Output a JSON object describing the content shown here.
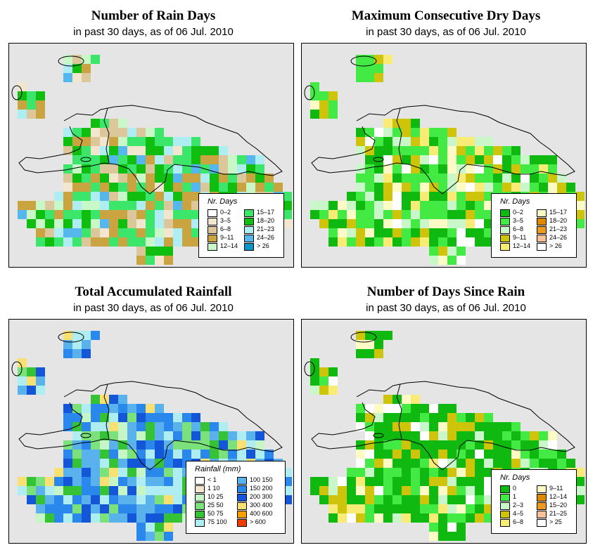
{
  "panels": [
    {
      "id": "rain-days",
      "title": "Number of Rain Days",
      "subtitle": "in past 30 days, as of  06 Jul. 2010",
      "legend": {
        "title": "Nr. Days",
        "items": [
          {
            "label": "0–2",
            "color": "#ffffff"
          },
          {
            "label": "3–5",
            "color": "#f3e6cf"
          },
          {
            "label": "6–8",
            "color": "#dcc79a"
          },
          {
            "label": "9–11",
            "color": "#c9a440"
          },
          {
            "label": "12–14",
            "color": "#c8f7c8"
          },
          {
            "label": "15–17",
            "color": "#3ce66a"
          },
          {
            "label": "18–20",
            "color": "#0fbe0f"
          },
          {
            "label": "21–23",
            "color": "#aeeef3"
          },
          {
            "label": "24–26",
            "color": "#55b7ec"
          },
          {
            "label": "> 26",
            "color": "#0a94c8"
          }
        ]
      }
    },
    {
      "id": "max-dry-days",
      "title": "Maximum Consecutive Dry Days",
      "subtitle": "in past 30 days, as of  06 Jul. 2010",
      "legend": {
        "title": "Nr. Days",
        "items": [
          {
            "label": "0–2",
            "color": "#10b910"
          },
          {
            "label": "3–5",
            "color": "#43ea43"
          },
          {
            "label": "6–8",
            "color": "#c9f7c9"
          },
          {
            "label": "9–11",
            "color": "#cdc40b"
          },
          {
            "label": "12–14",
            "color": "#f8ec76"
          },
          {
            "label": "15–17",
            "color": "#fcfbc5"
          },
          {
            "label": "18–20",
            "color": "#dc8a00"
          },
          {
            "label": "21–23",
            "color": "#ec9a20"
          },
          {
            "label": "24–26",
            "color": "#f8c29a"
          },
          {
            "label": "> 26",
            "color": "#ffffff"
          }
        ]
      }
    },
    {
      "id": "total-rainfall",
      "title": "Total Accumulated Rainfall",
      "subtitle": "in past 30 days, as of  06 Jul. 2010",
      "legend": {
        "title": "Rainfall (mm)",
        "items": [
          {
            "label": "< 1",
            "color": "#ffffff"
          },
          {
            "label": "1   10",
            "color": "#f5e6cf"
          },
          {
            "label": "10   25",
            "color": "#c6f6c6"
          },
          {
            "label": "25   50",
            "color": "#7be27b"
          },
          {
            "label": "50   75",
            "color": "#35c235"
          },
          {
            "label": "75  100",
            "color": "#aeeef3"
          },
          {
            "label": "100  150",
            "color": "#5ab2ec"
          },
          {
            "label": "150  200",
            "color": "#2a88ec"
          },
          {
            "label": "200  300",
            "color": "#1456d8"
          },
          {
            "label": "300  400",
            "color": "#f8e072"
          },
          {
            "label": "400  600",
            "color": "#f4a000"
          },
          {
            "label": "> 600",
            "color": "#f03c00"
          }
        ]
      }
    },
    {
      "id": "days-since-rain",
      "title": "Number of Days Since Rain",
      "subtitle": "in past 30 days, as of  06 Jul. 2010",
      "legend": {
        "title": "Nr. Days",
        "items": [
          {
            "label": "0",
            "color": "#10b910"
          },
          {
            "label": "1",
            "color": "#43ea43"
          },
          {
            "label": "2–3",
            "color": "#c9f7c9"
          },
          {
            "label": "4–5",
            "color": "#cdc40b"
          },
          {
            "label": "6–8",
            "color": "#f8ec76"
          },
          {
            "label": "9–11",
            "color": "#fcfbc5"
          },
          {
            "label": "12–14",
            "color": "#dc8a00"
          },
          {
            "label": "15–20",
            "color": "#ec9a20"
          },
          {
            "label": "21–25",
            "color": "#f8c29a"
          },
          {
            "label": "> 25",
            "color": "#ffffff"
          }
        ]
      }
    }
  ]
}
